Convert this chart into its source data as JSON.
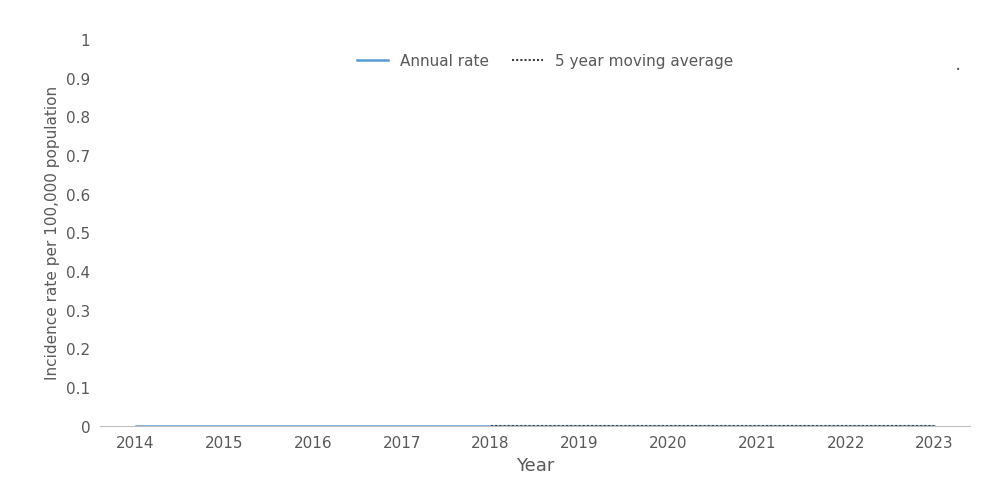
{
  "years": [
    2014,
    2015,
    2016,
    2017,
    2018,
    2019,
    2020,
    2021,
    2022,
    2023
  ],
  "annual_rate": [
    0.0,
    0.0,
    0.0,
    0.0,
    0.0,
    0.0,
    0.0,
    0.0,
    0.0,
    0.0
  ],
  "moving_avg_years": [
    2018,
    2019,
    2020,
    2021,
    2022,
    2023
  ],
  "moving_avg": [
    0.0,
    0.0,
    0.0,
    0.0,
    0.0,
    0.0
  ],
  "annual_rate_color": "#5B9BD5",
  "moving_avg_color": "#404040",
  "xlabel": "Year",
  "ylabel": "Incidence rate per 100,000 population",
  "ylim": [
    0,
    1.0
  ],
  "yticks": [
    0,
    0.1,
    0.2,
    0.3,
    0.4,
    0.5,
    0.6,
    0.7,
    0.8,
    0.9,
    1.0
  ],
  "ytick_labels": [
    "0",
    "0.1",
    "0.2",
    "0.3",
    "0.4",
    "0.5",
    "0.6",
    "0.7",
    "0.8",
    "0.9",
    "1"
  ],
  "xlim": [
    2013.6,
    2023.4
  ],
  "xticks": [
    2014,
    2015,
    2016,
    2017,
    2018,
    2019,
    2020,
    2021,
    2022,
    2023
  ],
  "legend_annual_label": "Annual rate",
  "legend_ma_label": "5 year moving average",
  "annual_linewidth": 1.8,
  "moving_avg_linewidth": 1.5,
  "background_color": "#ffffff",
  "text_color": "#595959",
  "spine_color": "#c0c0c0"
}
